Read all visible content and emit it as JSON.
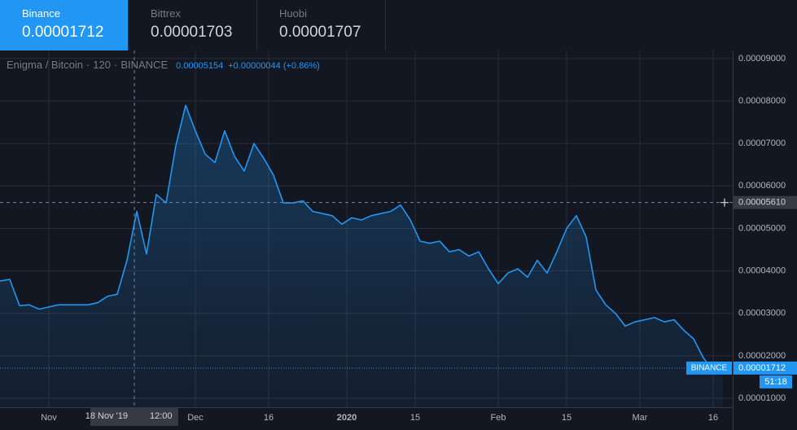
{
  "tabs": [
    {
      "name": "Binance",
      "price": "0.00001712"
    },
    {
      "name": "Bittrex",
      "price": "0.00001703"
    },
    {
      "name": "Huobi",
      "price": "0.00001707"
    }
  ],
  "chart_data": {
    "type": "line",
    "title": "Enigma / Bitcoin",
    "interval": "120",
    "exchange": "BINANCE",
    "price_label": "0.00005154",
    "change_label": "+0.00000044 (+0.86%)",
    "x": [
      "2019-10-22",
      "2019-10-24",
      "2019-10-26",
      "2019-10-28",
      "2019-10-30",
      "2019-11-01",
      "2019-11-03",
      "2019-11-05",
      "2019-11-07",
      "2019-11-09",
      "2019-11-11",
      "2019-11-13",
      "2019-11-15",
      "2019-11-17",
      "2019-11-19",
      "2019-11-21",
      "2019-11-23",
      "2019-11-25",
      "2019-11-27",
      "2019-11-29",
      "2019-12-01",
      "2019-12-03",
      "2019-12-05",
      "2019-12-07",
      "2019-12-09",
      "2019-12-11",
      "2019-12-13",
      "2019-12-15",
      "2019-12-17",
      "2019-12-19",
      "2019-12-21",
      "2019-12-23",
      "2019-12-25",
      "2019-12-27",
      "2019-12-29",
      "2019-12-31",
      "2020-01-02",
      "2020-01-04",
      "2020-01-06",
      "2020-01-08",
      "2020-01-10",
      "2020-01-12",
      "2020-01-14",
      "2020-01-16",
      "2020-01-18",
      "2020-01-20",
      "2020-01-22",
      "2020-01-24",
      "2020-01-26",
      "2020-01-28",
      "2020-01-30",
      "2020-02-01",
      "2020-02-03",
      "2020-02-05",
      "2020-02-07",
      "2020-02-09",
      "2020-02-11",
      "2020-02-13",
      "2020-02-15",
      "2020-02-17",
      "2020-02-19",
      "2020-02-21",
      "2020-02-23",
      "2020-02-25",
      "2020-02-27",
      "2020-02-29",
      "2020-03-02",
      "2020-03-04",
      "2020-03-06",
      "2020-03-08",
      "2020-03-10",
      "2020-03-12",
      "2020-03-14",
      "2020-03-16",
      "2020-03-18"
    ],
    "series": [
      {
        "name": "BINANCE",
        "color": "#2196f3",
        "values": [
          3.76e-05,
          3.8e-05,
          3.18e-05,
          3.2e-05,
          3.1e-05,
          3.15e-05,
          3.2e-05,
          3.2e-05,
          3.2e-05,
          3.2e-05,
          3.25e-05,
          3.4e-05,
          3.45e-05,
          4.25e-05,
          5.4e-05,
          4.4e-05,
          5.8e-05,
          5.6e-05,
          6.95e-05,
          7.9e-05,
          7.3e-05,
          6.75e-05,
          6.55e-05,
          7.3e-05,
          6.7e-05,
          6.35e-05,
          7e-05,
          6.65e-05,
          6.25e-05,
          5.6e-05,
          5.6e-05,
          5.65e-05,
          5.4e-05,
          5.35e-05,
          5.3e-05,
          5.1e-05,
          5.25e-05,
          5.2e-05,
          5.3e-05,
          5.35e-05,
          5.4e-05,
          5.55e-05,
          5.2e-05,
          4.7e-05,
          4.65e-05,
          4.7e-05,
          4.45e-05,
          4.5e-05,
          4.35e-05,
          4.45e-05,
          4.05e-05,
          3.7e-05,
          3.95e-05,
          4.05e-05,
          3.85e-05,
          4.25e-05,
          3.95e-05,
          4.45e-05,
          5e-05,
          5.3e-05,
          4.8e-05,
          3.55e-05,
          3.2e-05,
          3e-05,
          2.7e-05,
          2.8e-05,
          2.85e-05,
          2.9e-05,
          2.8e-05,
          2.85e-05,
          2.6e-05,
          2.4e-05,
          1.95e-05,
          1.65e-05,
          1.712e-05
        ]
      }
    ],
    "xlim": [
      "2019-10-22",
      "2020-03-20"
    ],
    "xticks": [
      {
        "value": "2019-11-01",
        "label": "Nov"
      },
      {
        "value": "2019-12-01",
        "label": "Dec"
      },
      {
        "value": "2019-12-16",
        "label": "16"
      },
      {
        "value": "2020-01-01",
        "label": "2020"
      },
      {
        "value": "2020-01-15",
        "label": "15"
      },
      {
        "value": "2020-02-01",
        "label": "Feb"
      },
      {
        "value": "2020-02-15",
        "label": "15"
      },
      {
        "value": "2020-03-01",
        "label": "Mar"
      },
      {
        "value": "2020-03-16",
        "label": "16"
      }
    ],
    "ylim": [
      7.9e-06,
      9.19e-05
    ],
    "yticks": [
      {
        "value": 1e-05,
        "label": "0.00001000"
      },
      {
        "value": 2e-05,
        "label": "0.00002000"
      },
      {
        "value": 3e-05,
        "label": "0.00003000"
      },
      {
        "value": 4e-05,
        "label": "0.00004000"
      },
      {
        "value": 5e-05,
        "label": "0.00005000"
      },
      {
        "value": 6e-05,
        "label": "0.00006000"
      },
      {
        "value": 7e-05,
        "label": "0.00007000"
      },
      {
        "value": 8e-05,
        "label": "0.00008000"
      },
      {
        "value": 9e-05,
        "label": "0.00009000"
      }
    ],
    "grid": true,
    "crosshair": {
      "x": "2019-11-18T12:00Z",
      "date_label": "18 Nov '19",
      "time_label": "12:00",
      "y": 5.61e-05,
      "y_label": "0.00005610"
    },
    "last_price": {
      "value": 1.712e-05,
      "label": "0.00001712",
      "countdown": "51:18"
    }
  }
}
